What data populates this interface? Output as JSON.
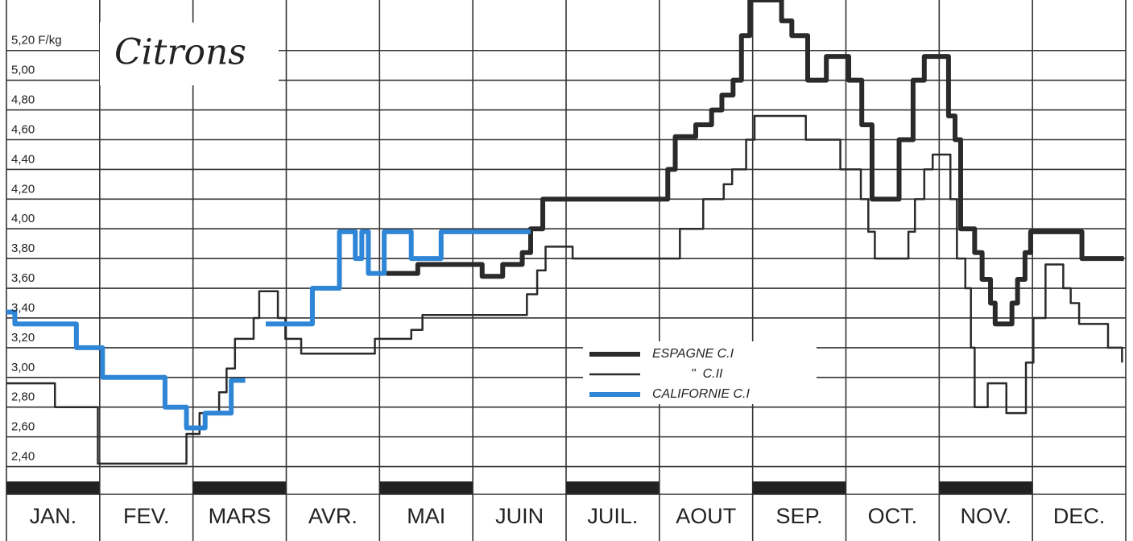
{
  "chart_data": {
    "type": "line",
    "title": "Citrons",
    "categories": [
      "JAN.",
      "FEV.",
      "MARS",
      "AVR.",
      "MAI",
      "JUIN",
      "JUIL.",
      "AOUT",
      "SEP.",
      "OCT.",
      "NOV.",
      "DEC."
    ],
    "xlim": [
      0,
      12
    ],
    "ylim": [
      2.3,
      5.54
    ],
    "yticks": [
      {
        "value": 5.2,
        "label": "5,20 F/kg"
      },
      {
        "value": 5.0,
        "label": "5,00"
      },
      {
        "value": 4.8,
        "label": "4,80"
      },
      {
        "value": 4.6,
        "label": "4,60"
      },
      {
        "value": 4.4,
        "label": "4,40"
      },
      {
        "value": 4.2,
        "label": "4,20"
      },
      {
        "value": 4.0,
        "label": "4,00"
      },
      {
        "value": 3.8,
        "label": "3,80"
      },
      {
        "value": 3.6,
        "label": "3,60"
      },
      {
        "value": 3.4,
        "label": "3,40"
      },
      {
        "value": 3.2,
        "label": "3,20"
      },
      {
        "value": 3.0,
        "label": "3,00"
      },
      {
        "value": 2.8,
        "label": "2,80"
      },
      {
        "value": 2.6,
        "label": "2,60"
      },
      {
        "value": 2.4,
        "label": "2,40"
      }
    ],
    "grid": true,
    "series": [
      {
        "name": "ESPAGNE C.I",
        "color": "#2a2a2a",
        "width": 6,
        "x": [
          4.07,
          4.41,
          5.1,
          5.32,
          5.53,
          5.62,
          5.75,
          7.09,
          7.17,
          7.39,
          7.56,
          7.67,
          7.79,
          7.88,
          7.97,
          8.31,
          8.42,
          8.59,
          8.79,
          9.03,
          9.17,
          9.28,
          9.57,
          9.72,
          9.84,
          10.1,
          10.17,
          10.23,
          10.38,
          10.46,
          10.55,
          10.6,
          10.78,
          10.84,
          10.92,
          10.98,
          11.53,
          11.98
        ],
        "values": [
          3.7,
          3.76,
          3.68,
          3.76,
          3.84,
          4.0,
          4.2,
          4.4,
          4.62,
          4.7,
          4.8,
          4.9,
          5.0,
          5.3,
          5.54,
          5.4,
          5.3,
          5.0,
          5.16,
          5.0,
          4.7,
          4.2,
          4.6,
          5.0,
          5.16,
          4.76,
          4.6,
          4.0,
          3.84,
          3.66,
          3.5,
          3.36,
          3.5,
          3.66,
          3.84,
          3.98,
          3.8,
          3.8
        ]
      },
      {
        "name": "\"  C.II",
        "color": "#2a2a2a",
        "width": 2.5,
        "x": [
          0,
          0.52,
          0.98,
          1.93,
          2.07,
          2.28,
          2.36,
          2.45,
          2.65,
          2.71,
          2.91,
          2.99,
          3.16,
          3.95,
          4.34,
          4.46,
          5.58,
          5.69,
          5.78,
          6.07,
          7.22,
          7.47,
          7.69,
          7.78,
          7.93,
          8.02,
          8.57,
          8.94,
          9.16,
          9.24,
          9.31,
          9.67,
          9.74,
          9.84,
          9.93,
          10.12,
          10.19,
          10.28,
          10.34,
          10.38,
          10.52,
          10.72,
          10.93,
          11.01,
          11.14,
          11.33,
          11.41,
          11.5,
          11.81,
          11.96
        ],
        "values": [
          2.96,
          2.8,
          2.42,
          2.62,
          2.76,
          2.9,
          3.06,
          3.26,
          3.4,
          3.58,
          3.4,
          3.26,
          3.16,
          3.26,
          3.32,
          3.42,
          3.56,
          3.72,
          3.88,
          3.8,
          4.0,
          4.2,
          4.3,
          4.4,
          4.6,
          4.76,
          4.6,
          4.4,
          4.2,
          3.98,
          3.8,
          3.98,
          4.2,
          4.4,
          4.5,
          4.2,
          3.8,
          3.6,
          3.2,
          2.8,
          2.96,
          2.76,
          3.1,
          3.4,
          3.76,
          3.6,
          3.5,
          3.36,
          3.2,
          3.1
        ]
      },
      {
        "name": "CALIFORNIE C.I",
        "color": "#2f86d6",
        "width": 6,
        "x": [
          0,
          0.09,
          0.75,
          1.03,
          1.7,
          1.93,
          2.13,
          2.41,
          2.56,
          null,
          2.78,
          3.28,
          3.57,
          3.74,
          3.81,
          3.88,
          4.05,
          4.34,
          4.66,
          5.62
        ],
        "values": [
          3.44,
          3.36,
          3.2,
          3.0,
          2.8,
          2.66,
          2.76,
          2.98,
          2.98,
          null,
          3.36,
          3.6,
          3.98,
          3.8,
          3.98,
          3.7,
          3.98,
          3.8,
          3.98,
          3.98
        ]
      }
    ]
  }
}
